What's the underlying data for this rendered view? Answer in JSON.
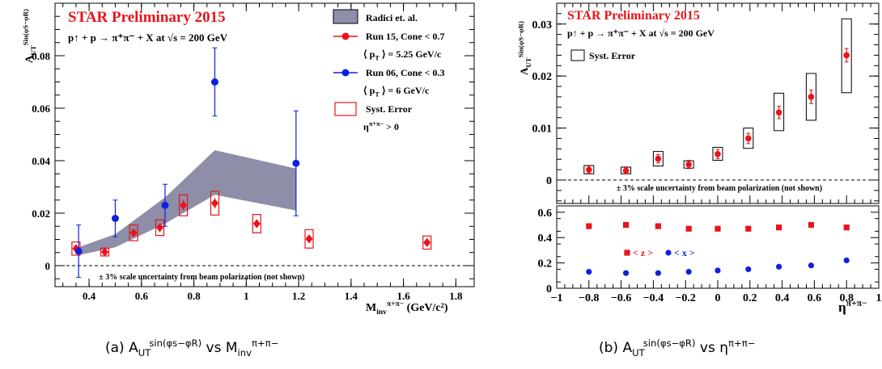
{
  "chart_data": [
    {
      "type": "scatter",
      "id": "a",
      "title": "STAR Preliminary 2015",
      "reaction": "p↑ + p → π⁺π⁻ + X at √s = 200 GeV",
      "ylabel": "A_UT^{Sin(φS−φR)}",
      "xlabel": "M_inv^{π+π−} (GeV/c²)",
      "xlim": [
        0.27,
        1.87
      ],
      "ylim": [
        -0.008,
        0.1
      ],
      "xticks": [
        "0.4",
        "0.6",
        "0.8",
        "1",
        "1.2",
        "1.4",
        "1.6",
        "1.8"
      ],
      "yticks": [
        "0",
        "0.02",
        "0.04",
        "0.06",
        "0.08"
      ],
      "scale_note": "± 3% scale uncertainty from beam polarization (not shown)",
      "legend": {
        "position": "top-right",
        "entries": [
          {
            "label": "Radici et. al.",
            "kind": "band",
            "color": "#8e8ea8"
          },
          {
            "label": "Run 15, Cone < 0.7",
            "kind": "marker",
            "color": "#e8141a"
          },
          {
            "label": "⟨ p_T ⟩ = 5.25 GeV/c",
            "kind": "text"
          },
          {
            "label": "Run 06, Cone < 0.3",
            "kind": "marker",
            "color": "#1020e0"
          },
          {
            "label": "⟨ p_T ⟩ = 6 GeV/c",
            "kind": "text"
          },
          {
            "label": "Syst. Error",
            "kind": "box",
            "color": "#e8141a"
          },
          {
            "label": "η^{π+π−} > 0",
            "kind": "text"
          }
        ]
      },
      "band": {
        "name": "Radici et. al.",
        "x": [
          0.36,
          0.5,
          0.69,
          0.88,
          1.19
        ],
        "upper": [
          0.007,
          0.012,
          0.026,
          0.044,
          0.037
        ],
        "lower": [
          0.004,
          0.007,
          0.016,
          0.027,
          0.021
        ]
      },
      "series": [
        {
          "name": "Run 15, Cone < 0.7",
          "color": "#e8141a",
          "x": [
            0.35,
            0.46,
            0.57,
            0.67,
            0.76,
            0.88,
            1.04,
            1.24,
            1.69
          ],
          "y": [
            0.0065,
            0.0052,
            0.0125,
            0.0145,
            0.023,
            0.0238,
            0.016,
            0.0102,
            0.0088
          ],
          "yerr": [
            0.001,
            0.0008,
            0.0015,
            0.0015,
            0.002,
            0.002,
            0.0015,
            0.0015,
            0.0015
          ],
          "syst": [
            0.0025,
            0.0015,
            0.003,
            0.003,
            0.004,
            0.0045,
            0.0035,
            0.0035,
            0.0025
          ]
        },
        {
          "name": "Run 06, Cone < 0.3",
          "color": "#1020e0",
          "x": [
            0.36,
            0.5,
            0.69,
            0.88,
            1.19
          ],
          "y": [
            0.0055,
            0.018,
            0.023,
            0.07,
            0.039
          ],
          "yerr": [
            0.01,
            0.007,
            0.008,
            0.013,
            0.02
          ]
        }
      ]
    },
    {
      "type": "scatter",
      "id": "b",
      "title": "STAR Preliminary 2015",
      "reaction": "p↑ + p → π⁺π⁻ + X at √s = 200 GeV",
      "ylabel": "A_UT^{Sin(φS−φR)}",
      "xlabel": "η^{π+π−}",
      "xlim": [
        -1,
        1
      ],
      "ylim": [
        -0.0045,
        0.034
      ],
      "xticks": [
        "−1",
        "−0.8",
        "−0.6",
        "−0.4",
        "−0.2",
        "0",
        "0.2",
        "0.4",
        "0.6",
        "0.8",
        "1"
      ],
      "yticks": [
        "0",
        "0.01",
        "0.02",
        "0.03"
      ],
      "scale_note": "± 3% scale uncertainty from beam polarization (not shown)",
      "legend": {
        "position": "top-left",
        "entries": [
          {
            "label": "Syst. Error",
            "kind": "box",
            "color": "#000000"
          }
        ]
      },
      "series": [
        {
          "name": "",
          "color": "#e8141a",
          "x": [
            -0.8,
            -0.57,
            -0.37,
            -0.18,
            0,
            0.19,
            0.38,
            0.58,
            0.8
          ],
          "y": [
            0.002,
            0.0018,
            0.0041,
            0.003,
            0.005,
            0.008,
            0.013,
            0.016,
            0.024
          ],
          "yerr": [
            0.0007,
            0.0006,
            0.0008,
            0.0008,
            0.0009,
            0.001,
            0.0012,
            0.0013,
            0.0013
          ],
          "syst_lo": [
            0.0012,
            0.0012,
            0.0027,
            0.0023,
            0.0038,
            0.0061,
            0.0095,
            0.0115,
            0.0168
          ],
          "syst_hi": [
            0.0028,
            0.0025,
            0.0055,
            0.0037,
            0.0063,
            0.01,
            0.0167,
            0.0205,
            0.031
          ]
        }
      ],
      "kinematics": {
        "ylim": [
          0,
          0.65
        ],
        "yticks": [
          "0",
          "0.2",
          "0.4",
          "0.6"
        ],
        "legend": [
          "< z >",
          "< x >"
        ],
        "series": [
          {
            "name": "< z >",
            "color": "#e8141a",
            "marker": "square",
            "x": [
              -0.8,
              -0.57,
              -0.37,
              -0.18,
              0,
              0.19,
              0.38,
              0.58,
              0.8
            ],
            "y": [
              0.49,
              0.5,
              0.49,
              0.47,
              0.47,
              0.47,
              0.48,
              0.5,
              0.48
            ]
          },
          {
            "name": "< x >",
            "color": "#1020e0",
            "marker": "circle",
            "x": [
              -0.8,
              -0.57,
              -0.37,
              -0.18,
              0,
              0.19,
              0.38,
              0.58,
              0.8
            ],
            "y": [
              0.13,
              0.12,
              0.12,
              0.13,
              0.14,
              0.15,
              0.17,
              0.18,
              0.22
            ]
          }
        ]
      }
    }
  ],
  "captions": {
    "a": "(a) A_UT^{sin(φs−φR)} vs M_inv^{π+π−}",
    "b": "(b) A_UT^{sin(φs−φR)} vs η^{π+π−}"
  }
}
